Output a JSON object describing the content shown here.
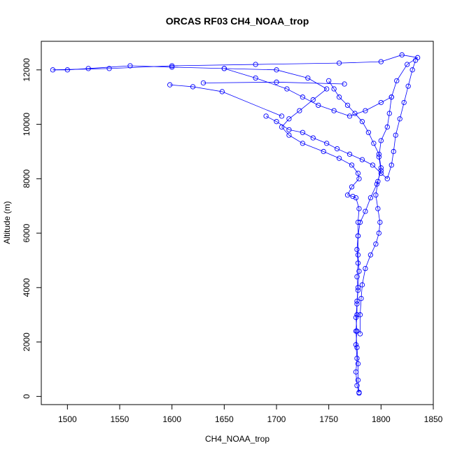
{
  "chart_data": {
    "type": "scatter",
    "title": "ORCAS RF03 CH4_NOAA_trop",
    "xlabel": "CH4_NOAA_trop",
    "ylabel": "Altitude (m)",
    "xlim": [
      1475,
      1850
    ],
    "ylim": [
      -300,
      13050
    ],
    "x_ticks": [
      1500,
      1550,
      1600,
      1650,
      1700,
      1750,
      1800,
      1850
    ],
    "y_ticks": [
      0,
      2000,
      4000,
      6000,
      8000,
      10000,
      12000
    ],
    "colors": {
      "series": "#0000ff",
      "frame": "#000000"
    },
    "marker": "open-circle",
    "connected": true,
    "series": [
      {
        "points": [
          [
            1779,
            120
          ],
          [
            1777,
            400
          ],
          [
            1776,
            900
          ],
          [
            1777,
            1400
          ],
          [
            1776,
            1900
          ],
          [
            1777,
            2400
          ],
          [
            1776,
            2900
          ],
          [
            1777,
            3400
          ],
          [
            1778,
            3900
          ],
          [
            1777,
            4400
          ],
          [
            1778,
            4900
          ],
          [
            1777,
            5400
          ],
          [
            1778,
            5900
          ],
          [
            1778,
            6400
          ],
          [
            1779,
            6900
          ],
          [
            1776,
            7300
          ],
          [
            1773,
            7350
          ],
          [
            1768,
            7400
          ],
          [
            1772,
            7700
          ],
          [
            1779,
            8000
          ],
          [
            1778,
            8200
          ],
          [
            1772,
            8500
          ],
          [
            1760,
            8750
          ],
          [
            1745,
            9000
          ],
          [
            1725,
            9300
          ],
          [
            1712,
            9600
          ],
          [
            1705,
            9900
          ],
          [
            1712,
            10200
          ],
          [
            1722,
            10500
          ],
          [
            1735,
            10900
          ],
          [
            1748,
            11300
          ],
          [
            1730,
            11700
          ],
          [
            1700,
            12000
          ],
          [
            1650,
            12050
          ],
          [
            1600,
            12100
          ],
          [
            1560,
            12150
          ],
          [
            1520,
            12050
          ],
          [
            1500,
            12000
          ],
          [
            1486,
            12000
          ],
          [
            1540,
            12050
          ],
          [
            1600,
            12150
          ],
          [
            1680,
            12200
          ],
          [
            1760,
            12250
          ],
          [
            1800,
            12300
          ],
          [
            1820,
            12550
          ],
          [
            1835,
            12450
          ],
          [
            1825,
            12200
          ],
          [
            1815,
            11600
          ],
          [
            1810,
            11000
          ],
          [
            1808,
            10400
          ],
          [
            1806,
            9900
          ],
          [
            1800,
            9400
          ],
          [
            1798,
            8800
          ],
          [
            1800,
            8300
          ],
          [
            1796,
            7800
          ],
          [
            1790,
            7300
          ],
          [
            1785,
            6800
          ],
          [
            1780,
            6400
          ],
          [
            1778,
            5900
          ],
          [
            1778,
            5200
          ],
          [
            1779,
            4600
          ],
          [
            1778,
            4000
          ],
          [
            1777,
            3500
          ],
          [
            1777,
            3000
          ],
          [
            1776,
            2400
          ],
          [
            1777,
            1800
          ],
          [
            1778,
            1200
          ],
          [
            1778,
            600
          ],
          [
            1779,
            150
          ]
        ]
      },
      {
        "points": [
          [
            1780,
            2300
          ],
          [
            1780,
            3000
          ],
          [
            1781,
            3600
          ],
          [
            1782,
            4100
          ],
          [
            1785,
            4700
          ],
          [
            1790,
            5200
          ],
          [
            1795,
            5600
          ],
          [
            1798,
            6000
          ],
          [
            1799,
            6400
          ],
          [
            1797,
            6900
          ],
          [
            1795,
            7400
          ],
          [
            1797,
            7900
          ],
          [
            1800,
            8400
          ],
          [
            1798,
            8900
          ],
          [
            1793,
            9300
          ],
          [
            1788,
            9700
          ],
          [
            1782,
            10100
          ],
          [
            1775,
            10400
          ],
          [
            1768,
            10700
          ],
          [
            1760,
            11000
          ],
          [
            1755,
            11300
          ],
          [
            1750,
            11600
          ]
        ]
      },
      {
        "points": [
          [
            1690,
            10300
          ],
          [
            1700,
            10100
          ],
          [
            1712,
            9800
          ],
          [
            1725,
            9700
          ],
          [
            1735,
            9500
          ],
          [
            1748,
            9300
          ],
          [
            1758,
            9100
          ],
          [
            1770,
            8900
          ],
          [
            1782,
            8700
          ],
          [
            1792,
            8500
          ],
          [
            1800,
            8200
          ],
          [
            1806,
            8000
          ],
          [
            1810,
            8500
          ],
          [
            1812,
            9000
          ],
          [
            1814,
            9600
          ],
          [
            1818,
            10200
          ],
          [
            1822,
            10800
          ],
          [
            1826,
            11400
          ],
          [
            1830,
            12000
          ],
          [
            1833,
            12350
          ]
        ]
      },
      {
        "points": [
          [
            1598,
            11450
          ],
          [
            1620,
            11380
          ],
          [
            1648,
            11200
          ],
          [
            1705,
            10300
          ]
        ]
      },
      {
        "points": [
          [
            1630,
            11520
          ],
          [
            1700,
            11550
          ],
          [
            1765,
            11480
          ]
        ]
      },
      {
        "points": [
          [
            1650,
            12050
          ],
          [
            1680,
            11700
          ],
          [
            1710,
            11300
          ],
          [
            1725,
            11000
          ],
          [
            1740,
            10700
          ],
          [
            1755,
            10500
          ],
          [
            1770,
            10300
          ],
          [
            1785,
            10500
          ],
          [
            1800,
            10800
          ],
          [
            1810,
            11000
          ]
        ]
      }
    ]
  }
}
